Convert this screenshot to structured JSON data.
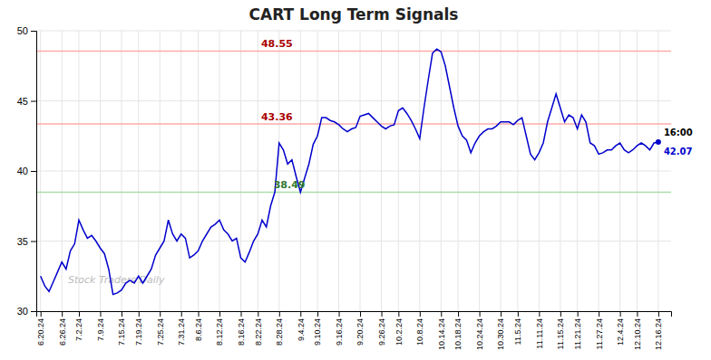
{
  "chart_data": {
    "type": "line",
    "title": "CART Long Term Signals",
    "color": "#0000cc",
    "categories": [
      "6.20.24",
      null,
      null,
      null,
      null,
      "6.26.24",
      null,
      null,
      null,
      "7.2.24",
      null,
      null,
      null,
      null,
      "7.9.24",
      null,
      null,
      null,
      null,
      "7.15.24",
      null,
      null,
      null,
      "7.19.24",
      null,
      null,
      null,
      null,
      "7.25.24",
      null,
      null,
      null,
      null,
      "7.31.24",
      null,
      null,
      null,
      "8.6.24",
      null,
      null,
      null,
      null,
      "8.12.24",
      null,
      null,
      null,
      null,
      "8.16.24",
      null,
      null,
      null,
      "8.22.24",
      null,
      null,
      null,
      null,
      "8.28.24",
      null,
      null,
      null,
      null,
      "9.4.24",
      null,
      null,
      null,
      "9.10.24",
      null,
      null,
      null,
      null,
      "9.16.24",
      null,
      null,
      null,
      null,
      "9.20.24",
      null,
      null,
      null,
      null,
      "9.26.24",
      null,
      null,
      null,
      "10.2.24",
      null,
      null,
      null,
      null,
      "10.8.24",
      null,
      null,
      null,
      null,
      "10.14.24",
      null,
      null,
      null,
      "10.18.24",
      null,
      null,
      null,
      null,
      "10.24.24",
      null,
      null,
      null,
      null,
      "10.30.24",
      null,
      null,
      null,
      "11.5.24",
      null,
      null,
      null,
      null,
      "11.11.24",
      null,
      null,
      null,
      null,
      "11.15.24",
      null,
      null,
      null,
      "11.21.24",
      null,
      null,
      null,
      null,
      "11.27.24",
      null,
      null,
      null,
      null,
      "12.4.24",
      null,
      null,
      null,
      "12.10.24",
      null,
      null,
      null,
      null,
      "12.16.24"
    ],
    "values": [
      32.5,
      31.8,
      31.4,
      32.1,
      32.8,
      33.5,
      33.0,
      34.3,
      34.8,
      36.5,
      35.8,
      35.2,
      35.4,
      35.0,
      34.5,
      34.1,
      33.0,
      31.2,
      31.3,
      31.5,
      32.0,
      32.2,
      32.0,
      32.5,
      32.0,
      32.5,
      33.0,
      34.0,
      34.5,
      35.0,
      36.5,
      35.5,
      35.0,
      35.5,
      35.2,
      33.8,
      34.0,
      34.3,
      35.0,
      35.5,
      36.0,
      36.2,
      36.5,
      35.8,
      35.5,
      35.0,
      35.2,
      33.8,
      33.5,
      34.2,
      35.0,
      35.5,
      36.5,
      36.0,
      37.5,
      38.5,
      42.0,
      41.5,
      40.5,
      40.8,
      39.6,
      38.49,
      39.5,
      40.5,
      41.9,
      42.5,
      43.8,
      43.8,
      43.6,
      43.5,
      43.3,
      43.0,
      42.8,
      43.0,
      43.1,
      43.9,
      44.0,
      44.1,
      43.8,
      43.5,
      43.2,
      43.0,
      43.2,
      43.3,
      44.3,
      44.5,
      44.1,
      43.6,
      43.0,
      42.3,
      44.5,
      46.5,
      48.4,
      48.7,
      48.5,
      47.5,
      46.0,
      44.5,
      43.2,
      42.5,
      42.2,
      41.3,
      42.0,
      42.5,
      42.8,
      43.0,
      43.0,
      43.2,
      43.5,
      43.5,
      43.5,
      43.3,
      43.6,
      43.8,
      42.5,
      41.2,
      40.8,
      41.3,
      42.0,
      43.5,
      44.5,
      45.5,
      44.5,
      43.5,
      44.0,
      43.8,
      43.0,
      44.0,
      43.5,
      42.0,
      41.8,
      41.2,
      41.3,
      41.5,
      41.5,
      41.8,
      42.0,
      41.5,
      41.3,
      41.5,
      41.8,
      42.0,
      41.8,
      41.5,
      42.0,
      42.07
    ],
    "hlines": [
      {
        "value": 48.55,
        "label": "48.55",
        "color": "#ffaaaa"
      },
      {
        "value": 43.36,
        "label": "43.36",
        "color": "#ffaaaa"
      },
      {
        "value": 38.49,
        "label": "38.49",
        "color": "#aaddaa"
      }
    ],
    "annotations": [
      "16:00",
      "42.07"
    ],
    "watermark": "Stock Traders Daily",
    "ylim": [
      30,
      50
    ],
    "yticks": [
      30,
      35,
      40,
      45,
      50
    ],
    "grid": true
  }
}
